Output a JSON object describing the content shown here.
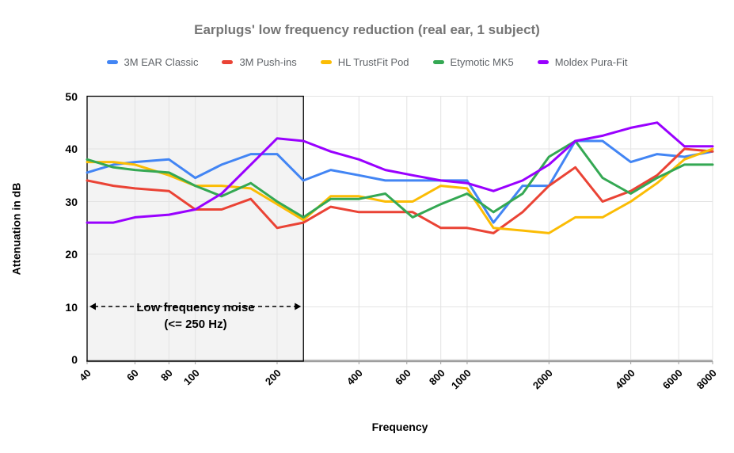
{
  "chart_data": {
    "type": "line",
    "title": "Earplugs' low frequency reduction (real ear, 1 subject)",
    "xlabel": "Frequency",
    "ylabel": "Attenuation in dB",
    "x_scale": "log",
    "xlim": [
      40,
      8000
    ],
    "ylim": [
      0,
      50
    ],
    "grid": true,
    "legend_position": "top",
    "yticks": [
      "0",
      "10",
      "20",
      "30",
      "40",
      "50"
    ],
    "xticks": [
      {
        "label": "40",
        "f": 40
      },
      {
        "label": "60",
        "f": 60
      },
      {
        "label": "80",
        "f": 80
      },
      {
        "label": "100",
        "f": 100
      },
      {
        "label": "200",
        "f": 200
      },
      {
        "label": "400",
        "f": 400
      },
      {
        "label": "600",
        "f": 600
      },
      {
        "label": "800",
        "f": 800
      },
      {
        "label": "1000",
        "f": 1000
      },
      {
        "label": "2000",
        "f": 2000
      },
      {
        "label": "4000",
        "f": 4000
      },
      {
        "label": "6000",
        "f": 6000
      },
      {
        "label": "8000",
        "f": 8000
      }
    ],
    "x": [
      40,
      50,
      60,
      80,
      100,
      125,
      160,
      200,
      250,
      315,
      400,
      500,
      630,
      800,
      1000,
      1250,
      1600,
      2000,
      2500,
      3150,
      4000,
      5000,
      6300,
      8000
    ],
    "series": [
      {
        "name": "3M EAR Classic",
        "color": "#4285F4",
        "values": [
          35.5,
          37,
          37.5,
          38,
          34.5,
          37,
          39,
          39,
          34,
          36,
          35,
          34,
          34,
          34,
          34,
          26,
          33,
          33,
          41.5,
          41.5,
          37.5,
          39,
          38.5,
          39.5
        ]
      },
      {
        "name": "3M Push-ins",
        "color": "#EA4335",
        "values": [
          34,
          33,
          32.5,
          32,
          28.5,
          28.5,
          30.5,
          25,
          26,
          29,
          28,
          28,
          28,
          25,
          25,
          24,
          28,
          33,
          36.5,
          30,
          32,
          35,
          40,
          39.5
        ]
      },
      {
        "name": "HL TrustFit Pod",
        "color": "#FBBC04",
        "values": [
          37.5,
          37.5,
          37,
          35,
          33,
          33,
          32.5,
          29.5,
          26.5,
          31,
          31,
          30,
          30,
          33,
          32.5,
          25,
          24.5,
          24,
          27,
          27,
          30,
          33.5,
          38,
          40
        ]
      },
      {
        "name": "Etymotic MK5",
        "color": "#34A853",
        "values": [
          38,
          36.5,
          36,
          35.5,
          33,
          31,
          33.5,
          30,
          27,
          30.5,
          30.5,
          31.5,
          27,
          29.5,
          31.5,
          28,
          31.5,
          38.5,
          41.5,
          34.5,
          31.5,
          34.5,
          37,
          37
        ]
      },
      {
        "name": "Moldex Pura-Fit",
        "color": "#9900FF",
        "values": [
          26,
          26,
          27,
          27.5,
          28.5,
          31.5,
          37,
          42,
          41.5,
          39.5,
          38,
          36,
          35,
          34,
          33.5,
          32,
          34,
          37,
          41.5,
          42.5,
          44,
          45,
          40.5,
          40.5
        ]
      }
    ],
    "annotation": {
      "line1": "Low frequency noise",
      "line2": "(<= 250 Hz)",
      "arrow_db": 10,
      "region": {
        "x_start": 40,
        "x_end": 250,
        "fill": "#f3f3f3",
        "border_color": "#000000"
      }
    },
    "style": {
      "gridline_color": "#e3e3e3",
      "axis_line_color": "#9e9e9e",
      "background": "#ffffff"
    }
  }
}
